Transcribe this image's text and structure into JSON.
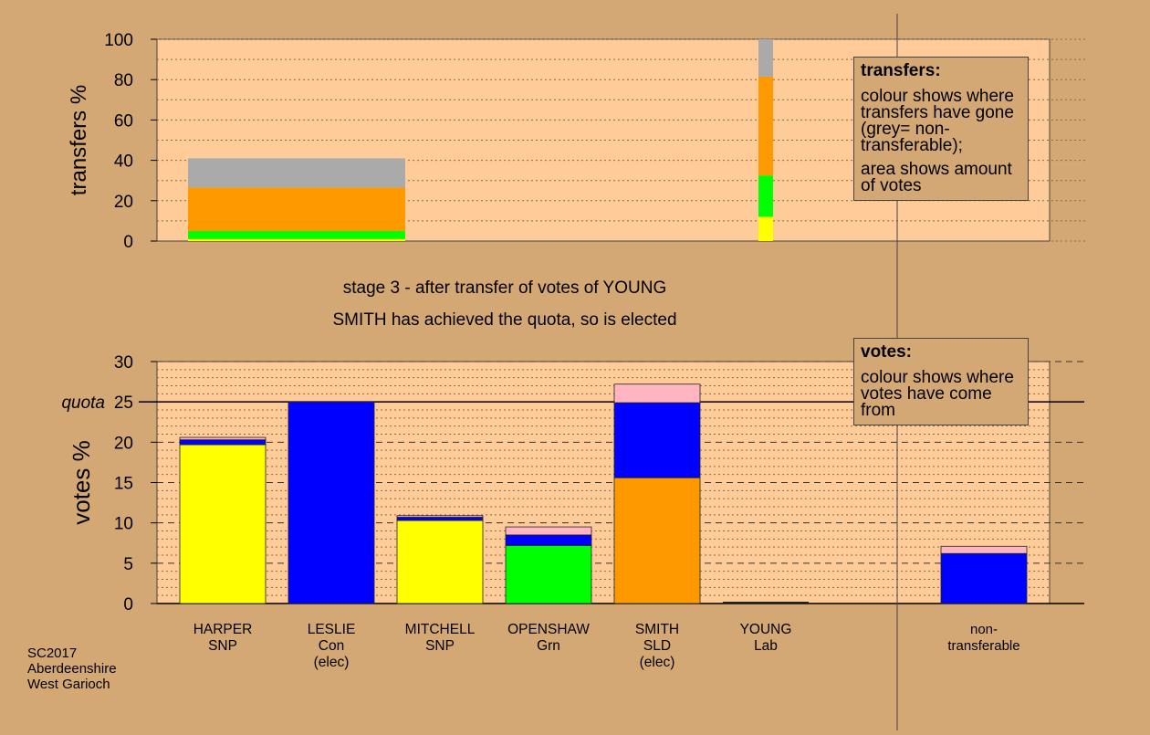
{
  "captions": {
    "line1": "stage 3 - after transfer of votes of YOUNG",
    "line2": "SMITH has achieved the quota, so is elected"
  },
  "footer": [
    "SC2017",
    "Aberdeenshire",
    "West Garioch"
  ],
  "legends": {
    "transfers": {
      "title": "transfers:",
      "lines": [
        "colour shows where transfers have gone (grey= non-transferable);",
        "area shows amount of votes"
      ]
    },
    "votes": {
      "title": "votes:",
      "lines": [
        "colour shows where votes have come from"
      ]
    }
  },
  "colors": {
    "background": "#d4a874",
    "plot": "#ffcc99",
    "SNP": "#ffff00",
    "Con": "#0000ff",
    "Grn": "#00ff00",
    "SLD": "#ff9900",
    "Lab": "#ffb6c1",
    "nontransferable": "#aaaaaa"
  },
  "chart_data": [
    {
      "type": "bar",
      "ylabel": "transfers %",
      "ylim": [
        0,
        100
      ],
      "yticks": [
        0,
        20,
        40,
        60,
        80,
        100
      ],
      "grid": true,
      "bars": [
        {
          "x_range": [
            "HARPER",
            "MITCHELL"
          ],
          "segments": [
            {
              "color": "SNP",
              "value": 1
            },
            {
              "color": "Grn",
              "value": 4
            },
            {
              "color": "SLD",
              "value": 21.5
            },
            {
              "color": "nontransferable",
              "value": 14.5
            }
          ]
        },
        {
          "x_range": [
            "SMITH",
            "YOUNG"
          ],
          "narrow": true,
          "segments": [
            {
              "color": "SNP",
              "value": 12
            },
            {
              "color": "Grn",
              "value": 20.5
            },
            {
              "color": "SLD",
              "value": 49
            },
            {
              "color": "nontransferable",
              "value": 18.5
            }
          ]
        }
      ]
    },
    {
      "type": "bar",
      "ylabel": "votes %",
      "ylim": [
        0,
        30
      ],
      "yticks": [
        0,
        5,
        10,
        15,
        20,
        25,
        30
      ],
      "quota": {
        "label": "quota",
        "value": 25
      },
      "grid": true,
      "categories": [
        {
          "name": "HARPER",
          "party": "SNP",
          "status": ""
        },
        {
          "name": "LESLIE",
          "party": "Con",
          "status": "(elec)"
        },
        {
          "name": "MITCHELL",
          "party": "SNP",
          "status": ""
        },
        {
          "name": "OPENSHAW",
          "party": "Grn",
          "status": ""
        },
        {
          "name": "SMITH",
          "party": "SLD",
          "status": "(elec)"
        },
        {
          "name": "YOUNG",
          "party": "Lab",
          "status": ""
        },
        {
          "name": "",
          "party": "",
          "status": ""
        },
        {
          "name": "non-",
          "party": "transferable",
          "status": ""
        }
      ],
      "series": [
        {
          "category": "HARPER",
          "segments": [
            {
              "color": "SNP",
              "value": 19.7
            },
            {
              "color": "Con",
              "value": 0.6
            },
            {
              "color": "Lab",
              "value": 0.3
            }
          ]
        },
        {
          "category": "LESLIE",
          "segments": [
            {
              "color": "Con",
              "value": 25.0
            }
          ]
        },
        {
          "category": "MITCHELL",
          "segments": [
            {
              "color": "SNP",
              "value": 10.3
            },
            {
              "color": "Con",
              "value": 0.4
            },
            {
              "color": "Lab",
              "value": 0.2
            }
          ]
        },
        {
          "category": "OPENSHAW",
          "segments": [
            {
              "color": "Grn",
              "value": 7.2
            },
            {
              "color": "Con",
              "value": 1.3
            },
            {
              "color": "Lab",
              "value": 1.0
            }
          ]
        },
        {
          "category": "SMITH",
          "segments": [
            {
              "color": "SLD",
              "value": 15.6
            },
            {
              "color": "Con",
              "value": 9.3
            },
            {
              "color": "Lab",
              "value": 2.3
            }
          ]
        },
        {
          "category": "YOUNG",
          "segments": []
        },
        {
          "category": "non-transferable",
          "segments": [
            {
              "color": "Con",
              "value": 6.2
            },
            {
              "color": "Lab",
              "value": 0.9
            }
          ]
        }
      ]
    }
  ]
}
